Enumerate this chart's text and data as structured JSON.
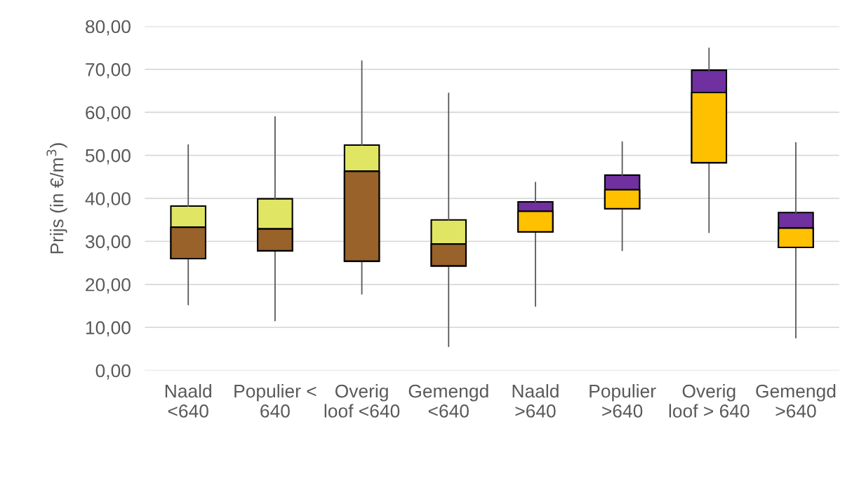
{
  "chart_data": {
    "type": "box",
    "ylabel": "Prijs (in €/m$^{3}$)",
    "categories": [
      "Naald\n<640",
      "Populier <\n640",
      "Overig\nloof <640",
      "Gemengd\n<640",
      "Naald\n>640",
      "Populier\n>640",
      "Overig\nloof > 640",
      "Gemengd\n>640"
    ],
    "series": [
      {
        "color": "#e1e564",
        "colors": [
          "#98622a",
          "#98622a",
          "#98622a",
          "#98622a",
          null,
          null,
          null,
          null
        ],
        "boxes": [
          {
            "low": 15.3,
            "q1": 26.0,
            "median": 33.3,
            "q3": 38.2,
            "high": 52.4
          },
          {
            "low": 11.6,
            "q1": 27.8,
            "median": 32.9,
            "q3": 39.9,
            "high": 58.9
          },
          {
            "low": 17.8,
            "q1": 25.4,
            "median": 46.3,
            "q3": 52.4,
            "high": 71.9
          },
          {
            "low": 5.6,
            "q1": 24.3,
            "median": 29.4,
            "q3": 35.0,
            "high": 64.4
          },
          null,
          null,
          null,
          null
        ]
      },
      {
        "color": "#7030a0",
        "colors": [
          null,
          null,
          null,
          null,
          "#ffc000",
          "#ffc000",
          "#ffc000",
          "#ffc000"
        ],
        "boxes": [
          null,
          null,
          null,
          null,
          {
            "low": 15.0,
            "q1": 32.2,
            "median": 37.0,
            "q3": 39.2,
            "high": 43.7
          },
          {
            "low": 27.9,
            "q1": 37.6,
            "median": 42.0,
            "q3": 45.4,
            "high": 53.1
          },
          {
            "low": 32.1,
            "q1": 48.3,
            "median": 64.6,
            "q3": 69.8,
            "high": 74.9
          },
          {
            "low": 7.6,
            "q1": 28.6,
            "median": 33.1,
            "q3": 36.7,
            "high": 52.9
          }
        ]
      }
    ],
    "ylim": [
      0,
      80
    ],
    "yticks": [
      {
        "value": 0,
        "label": "0,00"
      },
      {
        "value": 10,
        "label": "10,00"
      },
      {
        "value": 20,
        "label": "20,00"
      },
      {
        "value": 30,
        "label": "30,00"
      },
      {
        "value": 40,
        "label": "40,00"
      },
      {
        "value": 50,
        "label": "50,00"
      },
      {
        "value": 60,
        "label": "60,00"
      },
      {
        "value": 70,
        "label": "70,00"
      },
      {
        "value": 80,
        "label": "80,00"
      }
    ],
    "grid": "y",
    "legend": false
  }
}
